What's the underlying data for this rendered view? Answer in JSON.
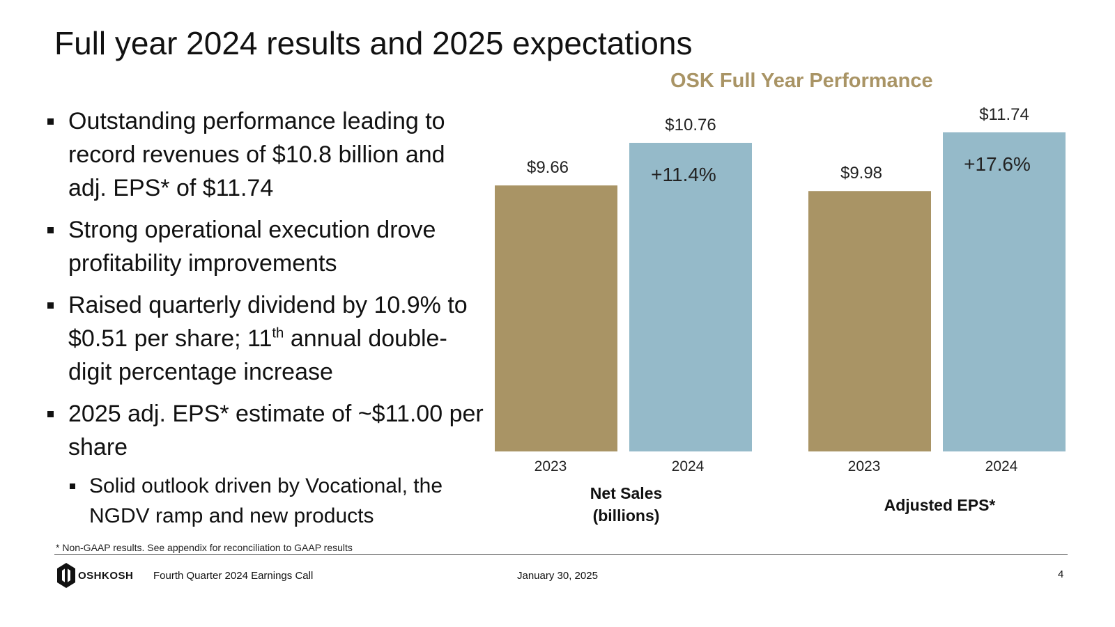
{
  "title": "Full year 2024 results and 2025 expectations",
  "bullets": [
    {
      "text": "Outstanding performance leading to record revenues of $10.8 billion and adj. EPS* of $11.74"
    },
    {
      "text": "Strong operational execution drove profitability improvements"
    },
    {
      "pre": "Raised quarterly dividend by 10.9% to $0.51 per share; 11",
      "sup": "th",
      "post": " annual double-digit percentage increase"
    },
    {
      "text": "2025 adj. EPS* estimate of ~$11.00 per share"
    }
  ],
  "sub_bullet": "Solid outlook driven by Vocational, the NGDV ramp and new products",
  "chart_data": {
    "type": "bar",
    "title": "OSK Full Year Performance",
    "groups": [
      {
        "label_lines": [
          "Net Sales",
          "(billions)"
        ],
        "categories": [
          "2023",
          "2024"
        ],
        "values": [
          9.66,
          10.76
        ],
        "value_labels": [
          "$9.66",
          "$10.76"
        ],
        "change_label": "+11.4%"
      },
      {
        "label_lines": [
          "Adjusted EPS*"
        ],
        "categories": [
          "2023",
          "2024"
        ],
        "values": [
          9.98,
          11.74
        ],
        "value_labels": [
          "$9.98",
          "$11.74"
        ],
        "change_label": "+17.6%"
      }
    ],
    "colors": {
      "2023": "#a99465",
      "2024": "#95bac9"
    }
  },
  "footnote": "*   Non-GAAP results. See appendix for reconciliation to GAAP results",
  "footer": {
    "logo_text": "OSHKOSH",
    "event": "Fourth Quarter 2024 Earnings Call",
    "date": "January 30, 2025",
    "page": "4"
  }
}
